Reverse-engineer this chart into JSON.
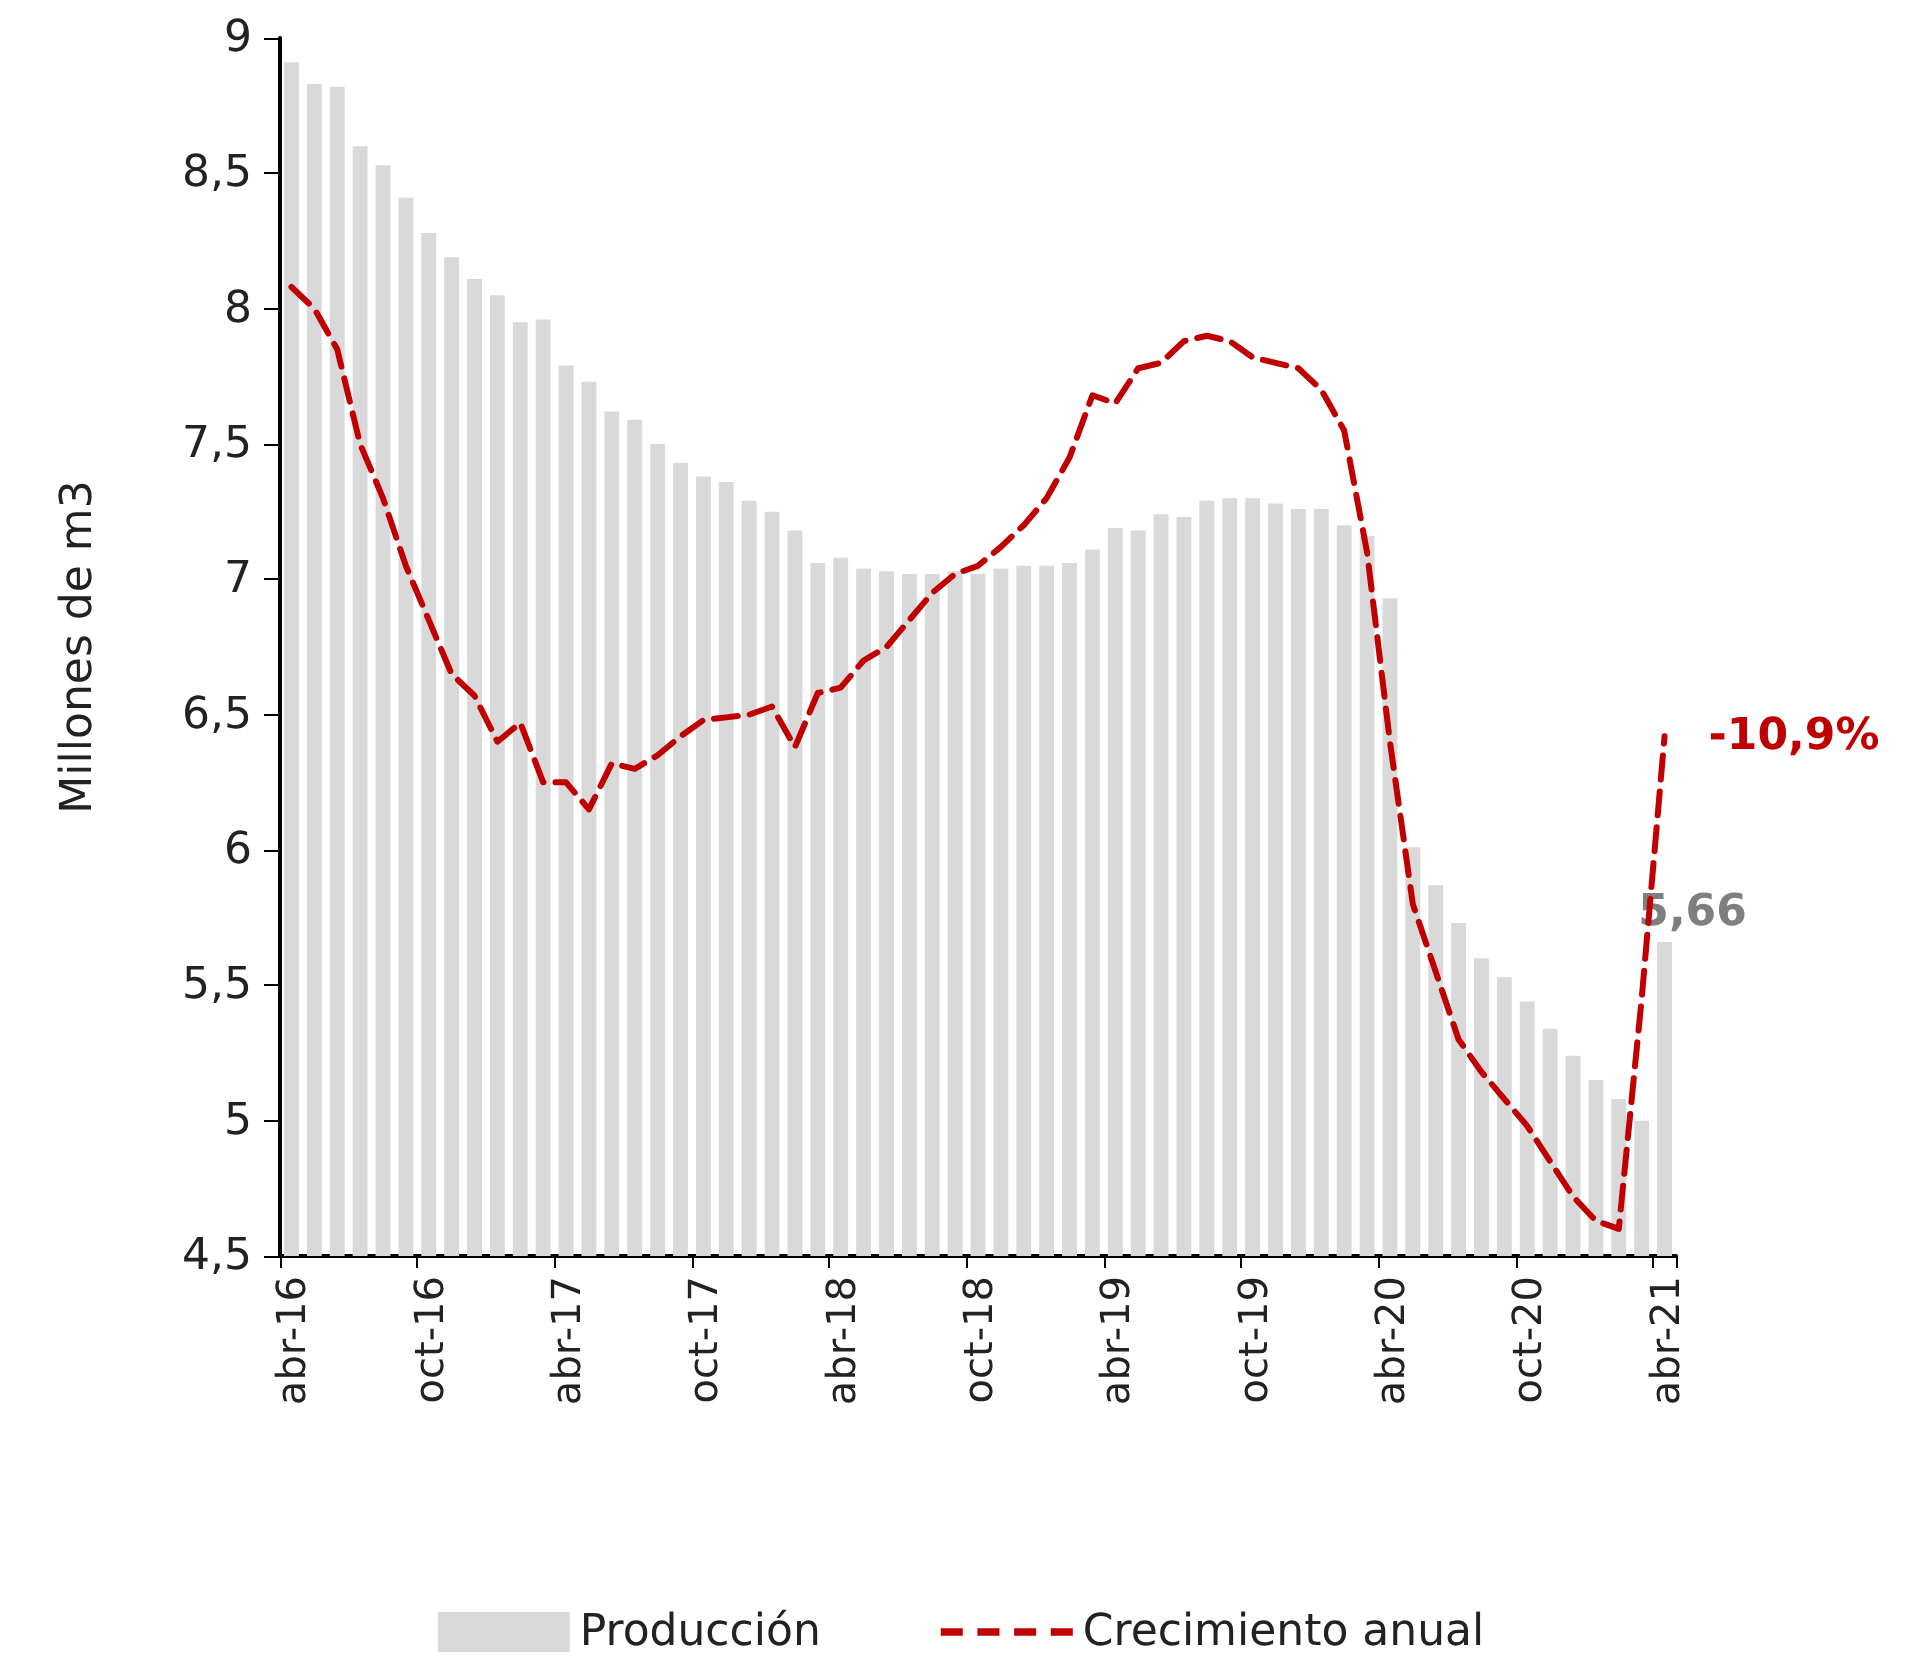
{
  "chart_data": {
    "type": "bar",
    "ylabel": "Millones de m3",
    "categories": [
      "abr-16",
      null,
      null,
      null,
      null,
      null,
      "oct-16",
      null,
      null,
      null,
      null,
      null,
      "abr-17",
      null,
      null,
      null,
      null,
      null,
      "oct-17",
      null,
      null,
      null,
      null,
      null,
      "abr-18",
      null,
      null,
      null,
      null,
      null,
      "oct-18",
      null,
      null,
      null,
      null,
      null,
      "abr-19",
      null,
      null,
      null,
      null,
      null,
      "oct-19",
      null,
      null,
      null,
      null,
      null,
      "abr-20",
      null,
      null,
      null,
      null,
      null,
      "oct-20",
      null,
      null,
      null,
      null,
      null,
      "abr-21"
    ],
    "series": [
      {
        "name": "Producción",
        "color": "#d9d9d9",
        "values": [
          8.91,
          8.83,
          8.82,
          8.6,
          8.53,
          8.41,
          8.28,
          8.19,
          8.11,
          8.05,
          7.95,
          7.96,
          7.79,
          7.73,
          7.62,
          7.59,
          7.5,
          7.43,
          7.38,
          7.36,
          7.29,
          7.25,
          7.18,
          7.06,
          7.08,
          7.04,
          7.03,
          7.02,
          7.02,
          7.03,
          7.02,
          7.04,
          7.05,
          7.05,
          7.06,
          7.11,
          7.19,
          7.18,
          7.24,
          7.23,
          7.29,
          7.3,
          7.3,
          7.28,
          7.26,
          7.26,
          7.2,
          7.16,
          6.93,
          6.01,
          5.87,
          5.73,
          5.6,
          5.53,
          5.44,
          5.34,
          5.24,
          5.15,
          5.08,
          5.0,
          5.66
        ],
        "value_labels": [
          null,
          null,
          null,
          null,
          null,
          null,
          null,
          null,
          null,
          null,
          null,
          null,
          null,
          null,
          null,
          null,
          null,
          null,
          null,
          null,
          null,
          null,
          null,
          null,
          null,
          null,
          null,
          null,
          null,
          null,
          null,
          null,
          null,
          null,
          null,
          null,
          null,
          null,
          null,
          null,
          null,
          null,
          null,
          null,
          null,
          null,
          null,
          null,
          null,
          null,
          null,
          null,
          null,
          null,
          null,
          null,
          null,
          null,
          null,
          null,
          "5,66"
        ]
      },
      {
        "name": "Crecimiento anual",
        "type": "line",
        "color": "#c00000",
        "line_style": "dashed",
        "marker": "none",
        "values": [
          8.08,
          8.0,
          7.85,
          7.5,
          7.3,
          7.05,
          6.85,
          6.65,
          6.57,
          6.4,
          6.47,
          6.25,
          6.25,
          6.15,
          6.32,
          6.3,
          6.35,
          6.42,
          6.48,
          6.49,
          6.5,
          6.53,
          6.38,
          6.58,
          6.6,
          6.7,
          6.75,
          6.85,
          6.95,
          7.02,
          7.05,
          7.12,
          7.2,
          7.3,
          7.45,
          7.68,
          7.65,
          7.78,
          7.8,
          7.88,
          7.9,
          7.88,
          7.82,
          7.8,
          7.78,
          7.7,
          7.55,
          7.1,
          6.4,
          5.8,
          5.55,
          5.3,
          5.18,
          5.08,
          4.98,
          4.85,
          4.72,
          4.63,
          4.6,
          5.45,
          6.42
        ]
      }
    ],
    "ylim": [
      4.5,
      9
    ],
    "yticks": [
      {
        "value": 4.5,
        "label": "4,5"
      },
      5,
      {
        "value": 5.5,
        "label": "5,5"
      },
      6,
      {
        "value": 6.5,
        "label": "6,5"
      },
      7,
      {
        "value": 7.5,
        "label": "7,5"
      },
      8,
      {
        "value": 8.5,
        "label": "8,5"
      },
      9
    ],
    "annotations": [
      {
        "text": "-10,9%",
        "x": "abr-21",
        "y": 6.42
      }
    ],
    "grid": false,
    "legend": "bottom"
  }
}
